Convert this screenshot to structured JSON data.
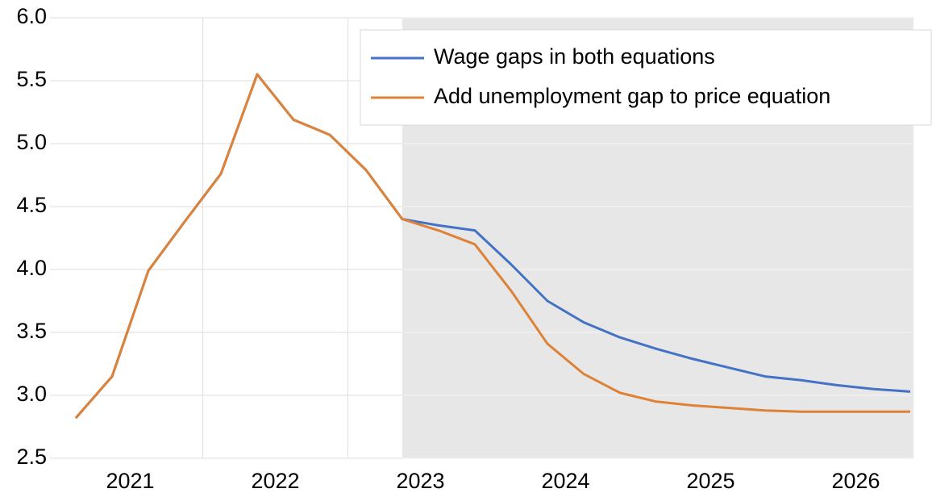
{
  "chart_data": {
    "type": "line",
    "categories": [
      "2021",
      null,
      null,
      null,
      "2022",
      null,
      null,
      null,
      "2023",
      null,
      null,
      null,
      "2024",
      null,
      null,
      null,
      "2025",
      null,
      null,
      null,
      "2026",
      null,
      null,
      null
    ],
    "series": [
      {
        "name": "Wage gaps in both equations",
        "color": "#4472c4",
        "values": [
          2.82,
          3.15,
          3.99,
          4.38,
          4.76,
          5.55,
          5.19,
          5.07,
          4.79,
          4.4,
          4.35,
          4.31,
          4.04,
          3.75,
          3.58,
          3.46,
          3.37,
          3.29,
          3.22,
          3.15,
          3.12,
          3.08,
          3.05,
          3.03
        ]
      },
      {
        "name": "Add unemployment gap to price equation",
        "color": "#dd8236",
        "values": [
          2.82,
          3.15,
          3.99,
          4.38,
          4.76,
          5.55,
          5.19,
          5.07,
          4.79,
          4.4,
          4.31,
          4.2,
          3.83,
          3.41,
          3.17,
          3.02,
          2.95,
          2.92,
          2.9,
          2.88,
          2.87,
          2.87,
          2.87,
          2.87
        ]
      }
    ],
    "ylim": [
      2.5,
      6.0
    ],
    "yticks": [
      2.5,
      {
        "value": 3.0,
        "label": "3.0"
      },
      3.5,
      {
        "value": 4.0,
        "label": "4.0"
      },
      4.5,
      {
        "value": 5.0,
        "label": "5.0"
      },
      5.5,
      {
        "value": 6.0,
        "label": "6.0"
      }
    ],
    "grid": true,
    "legend": "upper right"
  }
}
